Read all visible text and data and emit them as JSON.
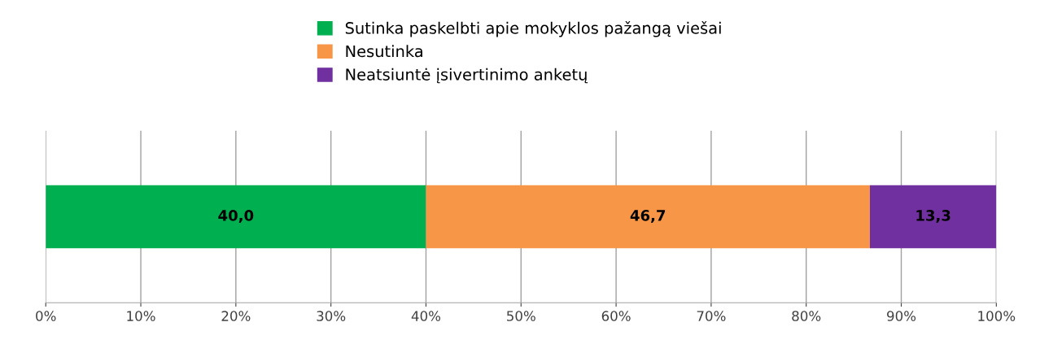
{
  "chart_data": {
    "type": "bar",
    "orientation": "horizontal",
    "stacked": true,
    "categories": [
      null
    ],
    "series": [
      {
        "name": "Sutinka paskelbti apie mokyklos pažangą viešai",
        "color": "#00b050",
        "values": [
          40.0
        ],
        "value_labels": [
          "40,0"
        ]
      },
      {
        "name": "Nesutinka",
        "color": "#f79646",
        "values": [
          46.7
        ],
        "value_labels": [
          "46,7"
        ]
      },
      {
        "name": "Neatsiuntė įsivertinimo anketų",
        "color": "#7030a0",
        "values": [
          13.3
        ],
        "value_labels": [
          "13,3"
        ]
      }
    ],
    "xlim": [
      0,
      100
    ],
    "xticks": [
      {
        "value": 0,
        "label": "0%"
      },
      {
        "value": 10,
        "label": "10%"
      },
      {
        "value": 20,
        "label": "20%"
      },
      {
        "value": 30,
        "label": "30%"
      },
      {
        "value": 40,
        "label": "40%"
      },
      {
        "value": 50,
        "label": "50%"
      },
      {
        "value": 60,
        "label": "60%"
      },
      {
        "value": 70,
        "label": "70%"
      },
      {
        "value": 80,
        "label": "80%"
      },
      {
        "value": 90,
        "label": "90%"
      },
      {
        "value": 100,
        "label": "100%"
      }
    ],
    "grid": "x",
    "legend": "top"
  }
}
